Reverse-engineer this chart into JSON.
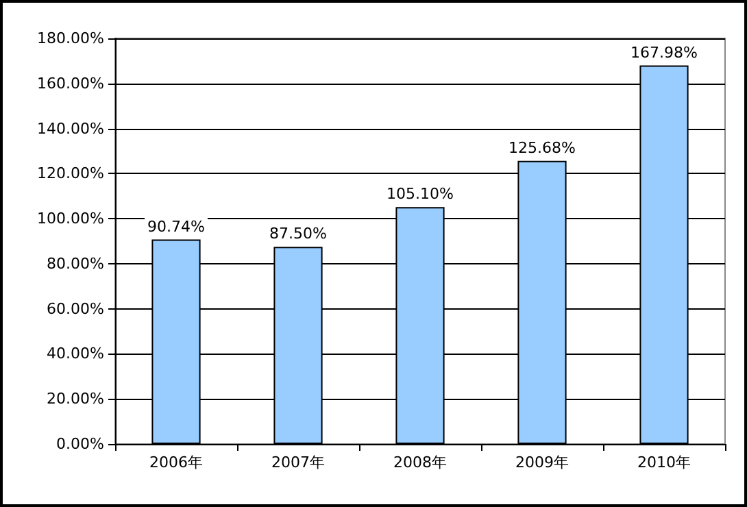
{
  "chart_data": {
    "type": "bar",
    "categories": [
      "2006年",
      "2007年",
      "2008年",
      "2009年",
      "2010年"
    ],
    "values": [
      90.74,
      87.5,
      105.1,
      125.68,
      167.98
    ],
    "value_labels": [
      "90.74%",
      "87.50%",
      "105.10%",
      "125.68%",
      "167.98%"
    ],
    "color": "#99ccff",
    "ylim": [
      0,
      180
    ],
    "yticks": [
      {
        "value": 0,
        "label": "0.00%"
      },
      {
        "value": 20,
        "label": "20.00%"
      },
      {
        "value": 40,
        "label": "40.00%"
      },
      {
        "value": 60,
        "label": "60.00%"
      },
      {
        "value": 80,
        "label": "80.00%"
      },
      {
        "value": 100,
        "label": "100.00%"
      },
      {
        "value": 120,
        "label": "120.00%"
      },
      {
        "value": 140,
        "label": "140.00%"
      },
      {
        "value": 160,
        "label": "160.00%"
      },
      {
        "value": 180,
        "label": "180.00%"
      }
    ],
    "grid": "y"
  }
}
